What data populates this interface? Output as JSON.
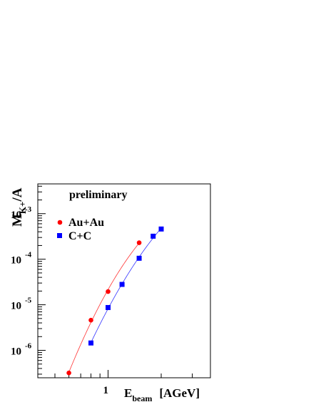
{
  "chart_data": {
    "type": "scatter",
    "title": "",
    "annotation": "preliminary",
    "xlabel": {
      "main": "E",
      "sub": "beam",
      "unit": "[AGeV]"
    },
    "ylabel": {
      "main": "M",
      "sub": "K+",
      "tail": "/A"
    },
    "x_scale": "log",
    "y_scale": "log",
    "xlim": [
      0.4,
      3.8
    ],
    "ylim": [
      2.5e-07,
      0.0045
    ],
    "x_ticks": [
      {
        "value": 1,
        "label": "1"
      }
    ],
    "y_ticks": [
      {
        "value": 0.001,
        "base": "10",
        "exp": "-3"
      },
      {
        "value": 0.0001,
        "base": "10",
        "exp": "-4"
      },
      {
        "value": 1e-05,
        "base": "10",
        "exp": "-5"
      },
      {
        "value": 1e-06,
        "base": "10",
        "exp": "-6"
      }
    ],
    "grid": false,
    "legend_position": "top-left",
    "series": [
      {
        "name": "Au+Au",
        "marker": "circle",
        "color": "#ff0000",
        "fit_color": "#ff3333",
        "x": [
          0.6,
          0.8,
          1.0,
          1.5
        ],
        "y": [
          3.2e-07,
          4.6e-06,
          1.95e-05,
          0.00023
        ],
        "fit_x_range": [
          0.6,
          1.5
        ]
      },
      {
        "name": "C+C",
        "marker": "square",
        "color": "#0000ff",
        "fit_color": "#3333ff",
        "x": [
          0.8,
          1.0,
          1.2,
          1.5,
          1.8,
          2.0
        ],
        "y": [
          1.45e-06,
          8.7e-06,
          2.8e-05,
          0.000105,
          0.00032,
          0.00046
        ],
        "fit_x_range": [
          0.8,
          2.0
        ]
      }
    ]
  }
}
